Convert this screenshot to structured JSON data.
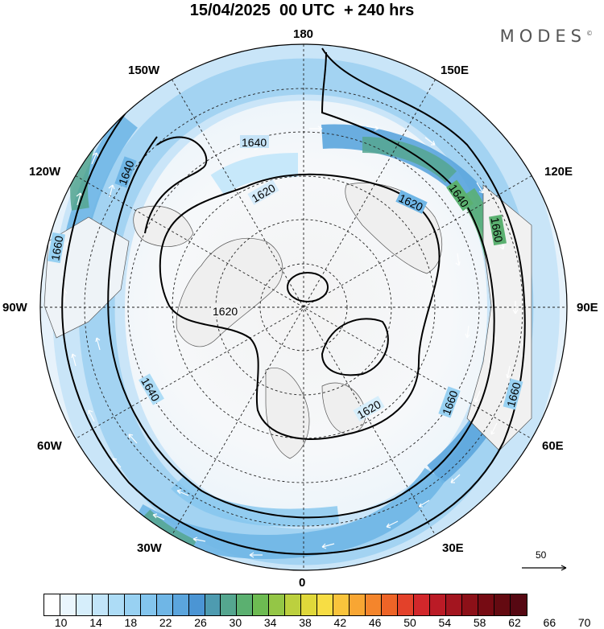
{
  "header": {
    "title": "15/04/2025  00 UTC  + 240 hrs",
    "brand": "MODES",
    "brand_mark": "©"
  },
  "map": {
    "projection": "north-polar-stereographic",
    "longitude_labels": {
      "top": "180",
      "upper_left": "150W",
      "upper_right": "150E",
      "left_upper": "120W",
      "right_upper": "120E",
      "left": "90W",
      "right": "90E",
      "left_lower": "60W",
      "right_lower": "60E",
      "lower_left": "30W",
      "lower_right": "30E",
      "bottom": "0"
    },
    "contour_labels": [
      "1640",
      "1620",
      "1620",
      "1640",
      "1660",
      "1660",
      "1620",
      "1640",
      "1620",
      "1640",
      "1660",
      "1660"
    ],
    "wind_scale_value": "50"
  },
  "colorbar": {
    "colors": [
      "#ffffff",
      "#eaf6fd",
      "#d6eefb",
      "#c2e5f9",
      "#addcf6",
      "#98d1f2",
      "#83c5ee",
      "#6fb6e6",
      "#5ba5dd",
      "#4b95d4",
      "#4e9bb0",
      "#55a68f",
      "#5bb070",
      "#6dbb52",
      "#94c646",
      "#bcd03e",
      "#e0d83a",
      "#f7dd44",
      "#f9c43c",
      "#f8a633",
      "#f4852c",
      "#ee6427",
      "#e3412a",
      "#d2272b",
      "#bb1b26",
      "#a3151f",
      "#8c1018",
      "#760b13",
      "#640a11",
      "#560812"
    ],
    "labels": [
      "10",
      "14",
      "18",
      "22",
      "26",
      "30",
      "34",
      "38",
      "42",
      "46",
      "50",
      "54",
      "58",
      "62",
      "66",
      "70"
    ],
    "units": ""
  }
}
